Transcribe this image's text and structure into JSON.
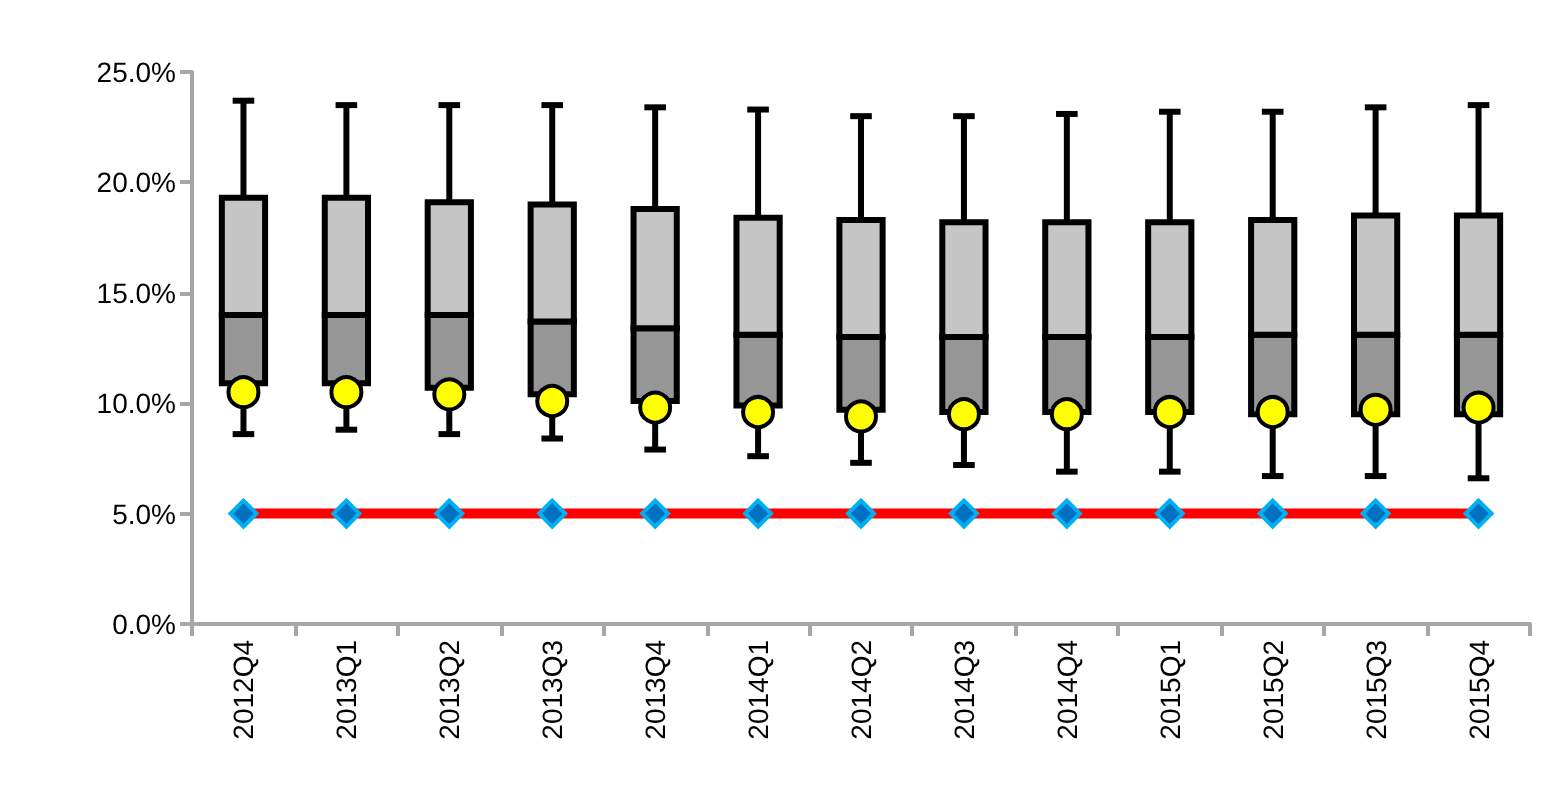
{
  "chart_data": {
    "type": "box",
    "categories": [
      "2012Q4",
      "2013Q1",
      "2013Q2",
      "2013Q3",
      "2013Q4",
      "2014Q1",
      "2014Q2",
      "2014Q3",
      "2014Q4",
      "2015Q1",
      "2015Q2",
      "2015Q3",
      "2015Q4"
    ],
    "ylim": [
      0,
      25
    ],
    "yticks": [
      {
        "value": 0,
        "label": "0.0%"
      },
      {
        "value": 5,
        "label": "5.0%"
      },
      {
        "value": 10,
        "label": "10.0%"
      },
      {
        "value": 15,
        "label": "15.0%"
      },
      {
        "value": 20,
        "label": "20.0%"
      },
      {
        "value": 25,
        "label": "25.0%"
      }
    ],
    "grid": false,
    "series": [
      {
        "color": "#969696",
        "boxes": [
          {
            "low": 8.6,
            "q1": 10.9,
            "median": 14.0,
            "q3": 19.3,
            "high": 23.7
          },
          {
            "low": 8.8,
            "q1": 10.9,
            "median": 14.0,
            "q3": 19.3,
            "high": 23.5
          },
          {
            "low": 8.6,
            "q1": 10.7,
            "median": 14.0,
            "q3": 19.1,
            "high": 23.5
          },
          {
            "low": 8.4,
            "q1": 10.4,
            "median": 13.7,
            "q3": 19.0,
            "high": 23.5
          },
          {
            "low": 7.9,
            "q1": 10.1,
            "median": 13.4,
            "q3": 18.8,
            "high": 23.4
          },
          {
            "low": 7.6,
            "q1": 9.9,
            "median": 13.1,
            "q3": 18.4,
            "high": 23.3
          },
          {
            "low": 7.3,
            "q1": 9.7,
            "median": 13.0,
            "q3": 18.3,
            "high": 23.0
          },
          {
            "low": 7.2,
            "q1": 9.6,
            "median": 13.0,
            "q3": 18.2,
            "high": 23.0
          },
          {
            "low": 6.9,
            "q1": 9.6,
            "median": 13.0,
            "q3": 18.2,
            "high": 23.1
          },
          {
            "low": 6.9,
            "q1": 9.6,
            "median": 13.0,
            "q3": 18.2,
            "high": 23.2
          },
          {
            "low": 6.7,
            "q1": 9.5,
            "median": 13.1,
            "q3": 18.3,
            "high": 23.2
          },
          {
            "low": 6.7,
            "q1": 9.5,
            "median": 13.1,
            "q3": 18.5,
            "high": 23.4
          },
          {
            "low": 6.6,
            "q1": 9.5,
            "median": 13.1,
            "q3": 18.5,
            "high": 23.5
          }
        ]
      },
      {
        "type": "scatter",
        "color": "#ffff00",
        "marker": "circle",
        "values": [
          10.5,
          10.5,
          10.4,
          10.1,
          9.8,
          9.6,
          9.4,
          9.5,
          9.5,
          9.6,
          9.6,
          9.7,
          9.8
        ]
      },
      {
        "type": "line",
        "color": "#ff0000",
        "marker": "diamond",
        "values": [
          5,
          5,
          5,
          5,
          5,
          5,
          5,
          5,
          5,
          5,
          5,
          5,
          5
        ]
      }
    ]
  }
}
